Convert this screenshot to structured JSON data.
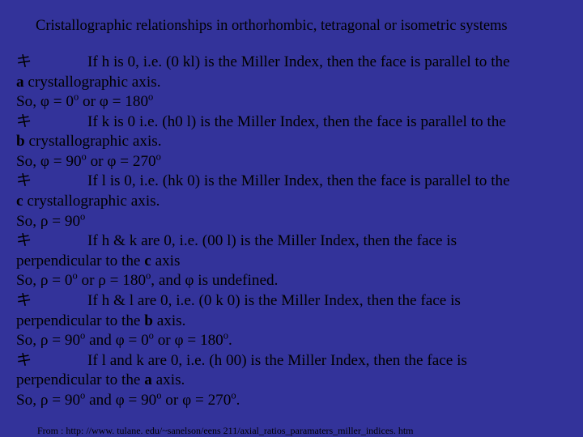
{
  "colors": {
    "background": "#33339a",
    "text": "#000000"
  },
  "typography": {
    "title_fontsize": 18.5,
    "body_fontsize": 19.2,
    "footer_fontsize": 12,
    "font_family": "Times New Roman, serif"
  },
  "title": "Cristallographic relationships in orthorhombic, tetragonal or isometric systems",
  "rules": [
    {
      "bullet": "キ",
      "text_bullet": "If h is 0, i.e. (0 kl) is the Miller Index, then the face is parallel to the ",
      "cont_prefix": "a",
      "cont_text": " crystallographic axis.",
      "result": "So, φ = 0",
      "result2": " or φ = 180",
      "result_suffix": "",
      "sup": "o"
    },
    {
      "bullet": "キ",
      "text_bullet": "If k is 0 i.e. (h0 l) is the Miller Index, then the face is parallel to the ",
      "cont_prefix": "b",
      "cont_text": " crystallographic axis.",
      "result": "So, φ = 90",
      "result2": " or φ = 270",
      "result_suffix": "",
      "sup": "o"
    },
    {
      "bullet": "キ",
      "text_bullet": "If l is 0, i.e. (hk 0) is the Miller Index, then the face is parallel to the ",
      "cont_prefix": "c",
      "cont_text": " crystallographic axis.",
      "result": "So, ρ = 90",
      "result2": "",
      "result_suffix": "",
      "sup": "o"
    },
    {
      "bullet": "キ",
      "text_bullet": "If h & k are 0, i.e. (00 l) is the Miller Index, then the face is ",
      "cont_prefix": "",
      "cont_text_plain_a": "perpendicular to the ",
      "cont_bold": "c",
      "cont_text_plain_b": " axis",
      "result": "So, ρ = 0",
      "result2": " or ρ = 180",
      "result_suffix": ", and φ is undefined.",
      "sup": "o"
    },
    {
      "bullet": "キ",
      "text_bullet": "If h & l are 0, i.e. (0 k 0) is the Miller Index, then the face is ",
      "cont_prefix": "",
      "cont_text_plain_a": "perpendicular to the ",
      "cont_bold": "b",
      "cont_text_plain_b": " axis.",
      "result": "So, ρ = 90",
      "result2_and": " and φ = 0",
      "result3": " or φ = 180",
      "result_suffix": ".",
      "sup": "o"
    },
    {
      "bullet": "キ",
      "text_bullet": "If l and k are 0, i.e. (h 00) is the Miller Index, then the face is ",
      "cont_prefix": "",
      "cont_text_plain_a": "perpendicular to the ",
      "cont_bold": "a",
      "cont_text_plain_b": " axis.",
      "result": "So, ρ = 90",
      "result2_and": " and φ = 90",
      "result3": " or φ = 270",
      "result_suffix": ".",
      "sup": "o"
    }
  ],
  "footer": "From : http: //www. tulane. edu/~sanelson/eens 211/axial_ratios_paramaters_miller_indices. htm"
}
